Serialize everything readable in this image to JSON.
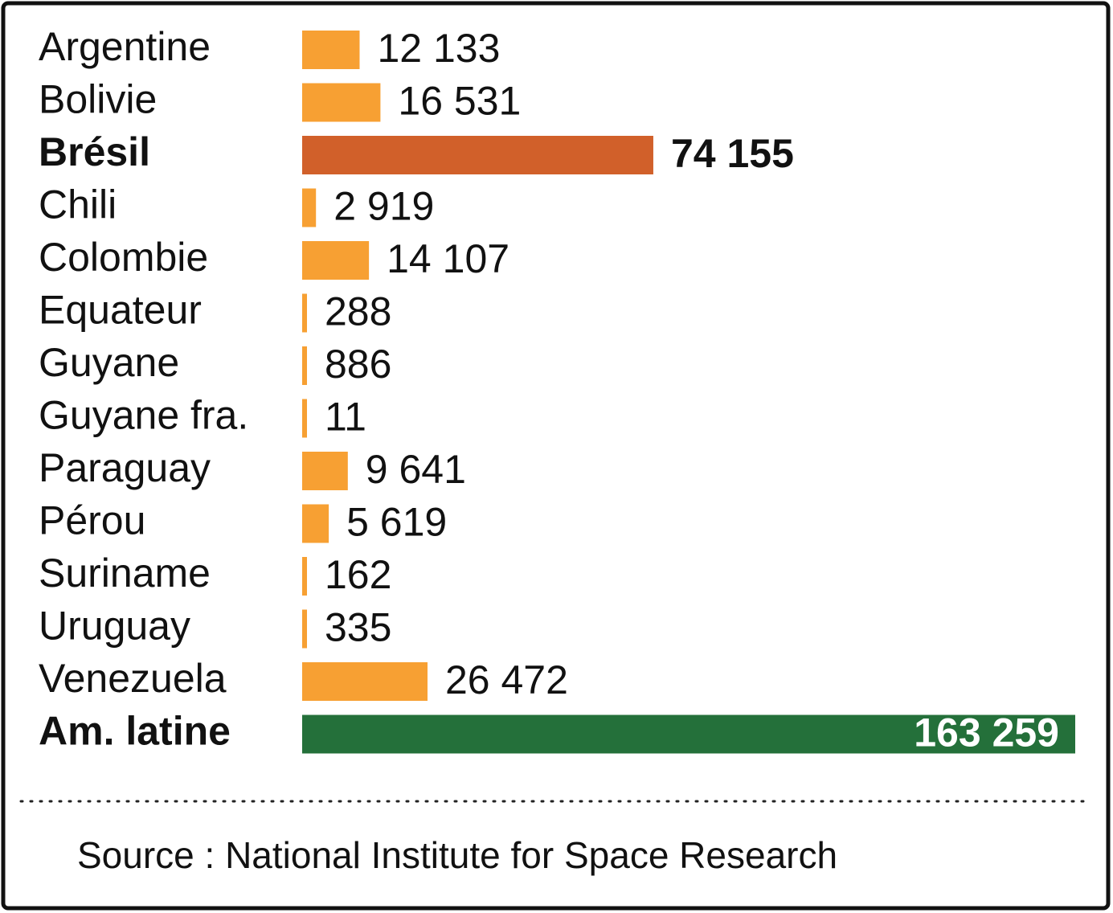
{
  "chart_data": {
    "type": "bar",
    "orientation": "horizontal",
    "categories": [
      "Argentine",
      "Bolivie",
      "Brésil",
      "Chili",
      "Colombie",
      "Equateur",
      "Guyane",
      "Guyane fra.",
      "Paraguay",
      "Pérou",
      "Suriname",
      "Uruguay",
      "Venezuela",
      "Am. latine"
    ],
    "values": [
      12133,
      16531,
      74155,
      2919,
      14107,
      288,
      886,
      11,
      9641,
      5619,
      162,
      335,
      26472,
      163259
    ],
    "value_labels": [
      "12 133",
      "16 531",
      "74 155",
      "2 919",
      "14 107",
      "288",
      "886",
      "11",
      "9 641",
      "5 619",
      "162",
      "335",
      "26 472",
      "163 259"
    ],
    "colors": [
      "#f7a033",
      "#f7a033",
      "#d1602a",
      "#f7a033",
      "#f7a033",
      "#f7a033",
      "#f7a033",
      "#f7a033",
      "#f7a033",
      "#f7a033",
      "#f7a033",
      "#f7a033",
      "#f7a033",
      "#24703a"
    ],
    "emphasis": [
      false,
      false,
      true,
      false,
      false,
      false,
      false,
      false,
      false,
      false,
      false,
      false,
      false,
      true
    ],
    "source": "Source : National Institute for Space Research"
  }
}
